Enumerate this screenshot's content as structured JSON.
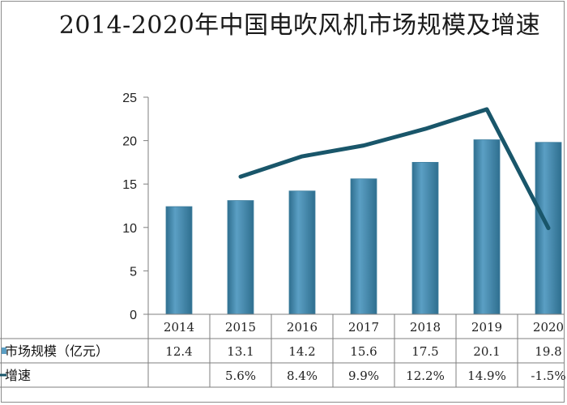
{
  "chart_data": {
    "type": "bar",
    "title": "2014-2020年中国电吹风机市场规模及增速",
    "categories": [
      "2014",
      "2015",
      "2016",
      "2017",
      "2018",
      "2019",
      "2020"
    ],
    "series": [
      {
        "name": "市场规模（亿元）",
        "type": "bar",
        "values": [
          12.4,
          13.1,
          14.2,
          15.6,
          17.5,
          20.1,
          19.8
        ],
        "labels": [
          "12.4",
          "13.1",
          "14.2",
          "15.6",
          "17.5",
          "20.1",
          "19.8"
        ]
      },
      {
        "name": "增速",
        "type": "line",
        "values": [
          null,
          5.6,
          8.4,
          9.9,
          12.2,
          14.9,
          -1.5
        ],
        "labels": [
          "",
          "5.6%",
          "8.4%",
          "9.9%",
          "12.2%",
          "14.9%",
          "-1.5%"
        ]
      }
    ],
    "ylim": [
      0,
      25
    ],
    "yticks": [
      "0",
      "5",
      "10",
      "15",
      "20",
      "25"
    ],
    "ytick_values": [
      0,
      5,
      10,
      15,
      20,
      25
    ],
    "legend": "data-table",
    "grid": false,
    "colors": {
      "bar": "#5b9fc4",
      "bar_dark": "#2f6f8f",
      "line": "#19566a",
      "axis": "#7f7f7f"
    }
  }
}
